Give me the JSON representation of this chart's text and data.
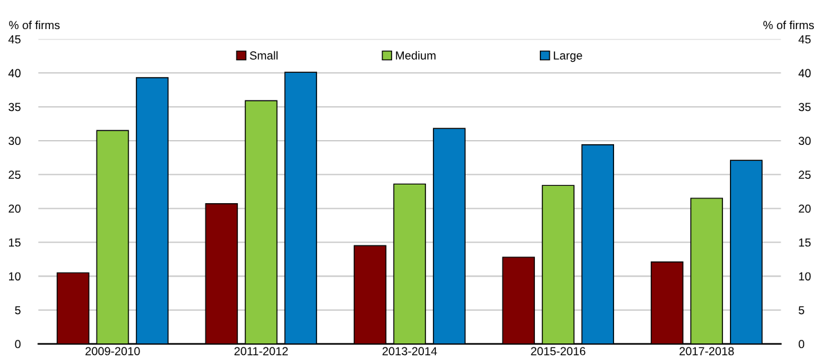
{
  "chart_data": {
    "type": "bar",
    "ylabel": "% of firms",
    "y2label": "% of firms",
    "categories": [
      "2009-2010",
      "2011-2012",
      "2013-2014",
      "2015-2016",
      "2017-2018"
    ],
    "series": [
      {
        "name": "Small",
        "color": "#800000",
        "values": [
          10.5,
          20.7,
          14.5,
          12.8,
          12.1
        ]
      },
      {
        "name": "Medium",
        "color": "#8cc841",
        "values": [
          31.5,
          35.9,
          23.6,
          23.4,
          21.5
        ]
      },
      {
        "name": "Large",
        "color": "#037bc1",
        "values": [
          39.3,
          40.1,
          31.8,
          29.4,
          27.1
        ]
      }
    ],
    "ylim": [
      0,
      45
    ],
    "yticks": [
      0,
      5,
      10,
      15,
      20,
      25,
      30,
      35,
      40,
      45
    ],
    "y2lim": [
      0,
      45
    ],
    "y2ticks": [
      0,
      5,
      10,
      15,
      20,
      25,
      30,
      35,
      40,
      45
    ],
    "grid": "y",
    "legend": "top"
  }
}
